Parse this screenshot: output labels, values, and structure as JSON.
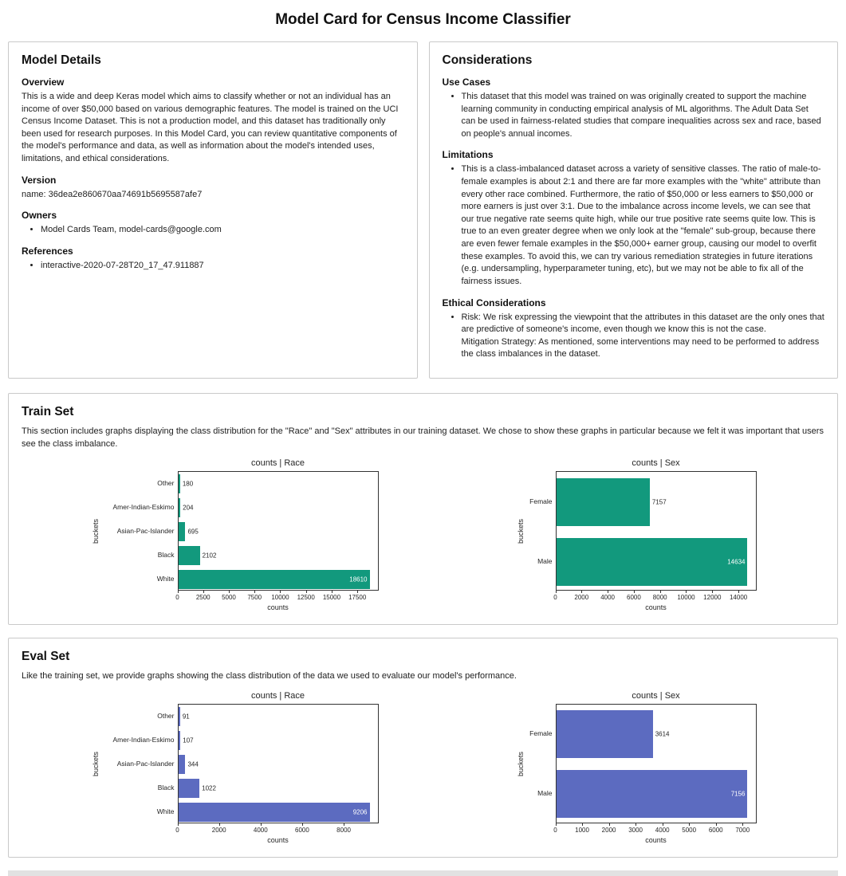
{
  "title": "Model Card for Census Income Classifier",
  "model_details": {
    "heading": "Model Details",
    "overview_heading": "Overview",
    "overview_text": "This is a wide and deep Keras model which aims to classify whether or not an individual has an income of over $50,000 based on various demographic features. The model is trained on the UCI Census Income Dataset. This is not a production model, and this dataset has traditionally only been used for research purposes. In this Model Card, you can review quantitative components of the model's performance and data, as well as information about the model's intended uses, limitations, and ethical considerations.",
    "version_heading": "Version",
    "version_text": "name: 36dea2e860670aa74691b5695587afe7",
    "owners_heading": "Owners",
    "owners_items": [
      "Model Cards Team, model-cards@google.com"
    ],
    "references_heading": "References",
    "references_items": [
      "interactive-2020-07-28T20_17_47.911887"
    ]
  },
  "considerations": {
    "heading": "Considerations",
    "use_cases_heading": "Use Cases",
    "use_cases_items": [
      "This dataset that this model was trained on was originally created to support the machine learning community in conducting empirical analysis of ML algorithms. The Adult Data Set can be used in fairness-related studies that compare inequalities across sex and race, based on people's annual incomes."
    ],
    "limitations_heading": "Limitations",
    "limitations_items": [
      "This is a class-imbalanced dataset across a variety of sensitive classes. The ratio of male-to-female examples is about 2:1 and there are far more examples with the \"white\" attribute than every other race combined. Furthermore, the ratio of $50,000 or less earners to $50,000 or more earners is just over 3:1. Due to the imbalance across income levels, we can see that our true negative rate seems quite high, while our true positive rate seems quite low. This is true to an even greater degree when we only look at the \"female\" sub-group, because there are even fewer female examples in the $50,000+ earner group, causing our model to overfit these examples. To avoid this, we can try various remediation strategies in future iterations (e.g. undersampling, hyperparameter tuning, etc), but we may not be able to fix all of the fairness issues."
    ],
    "ethical_heading": "Ethical Considerations",
    "ethical_items": [
      "Risk: We risk expressing the viewpoint that the attributes in this dataset are the only ones that are predictive of someone's income, even though we know this is not the case.\nMitigation Strategy: As mentioned, some interventions may need to be performed to address the class imbalances in the dataset."
    ]
  },
  "train_set": {
    "heading": "Train Set",
    "description": "This section includes graphs displaying the class distribution for the \"Race\" and \"Sex\" attributes in our training dataset. We chose to show these graphs in particular because we felt it was important that users see the class imbalance."
  },
  "eval_set": {
    "heading": "Eval Set",
    "description": "Like the training set, we provide graphs showing the class distribution of the data we used to evaluate our model's performance."
  },
  "colors": {
    "train_bar": "#12997d",
    "eval_bar": "#5c6bc0"
  },
  "chart_data": [
    {
      "id": "train-race",
      "type": "bar",
      "orientation": "horizontal",
      "title": "counts | Race",
      "xlabel": "counts",
      "ylabel": "buckets",
      "categories": [
        "Other",
        "Amer-Indian-Eskimo",
        "Asian-Pac-Islander",
        "Black",
        "White"
      ],
      "values": [
        180,
        204,
        695,
        2102,
        18610
      ],
      "xticks": [
        0,
        2500,
        5000,
        7500,
        10000,
        12500,
        15000,
        17500
      ],
      "xlim": [
        0,
        19540
      ],
      "grid": false,
      "bar_color": "#12997d"
    },
    {
      "id": "train-sex",
      "type": "bar",
      "orientation": "horizontal",
      "title": "counts | Sex",
      "xlabel": "counts",
      "ylabel": "buckets",
      "categories": [
        "Female",
        "Male"
      ],
      "values": [
        7157,
        14634
      ],
      "xticks": [
        0,
        2000,
        4000,
        6000,
        8000,
        10000,
        12000,
        14000
      ],
      "xlim": [
        0,
        15366
      ],
      "grid": false,
      "bar_color": "#12997d"
    },
    {
      "id": "eval-race",
      "type": "bar",
      "orientation": "horizontal",
      "title": "counts | Race",
      "xlabel": "counts",
      "ylabel": "buckets",
      "categories": [
        "Other",
        "Amer-Indian-Eskimo",
        "Asian-Pac-Islander",
        "Black",
        "White"
      ],
      "values": [
        91,
        107,
        344,
        1022,
        9206
      ],
      "xticks": [
        0,
        2000,
        4000,
        6000,
        8000
      ],
      "xlim": [
        0,
        9666
      ],
      "grid": false,
      "bar_color": "#5c6bc0"
    },
    {
      "id": "eval-sex",
      "type": "bar",
      "orientation": "horizontal",
      "title": "counts | Sex",
      "xlabel": "counts",
      "ylabel": "buckets",
      "categories": [
        "Female",
        "Male"
      ],
      "values": [
        3614,
        7156
      ],
      "xticks": [
        0,
        1000,
        2000,
        3000,
        4000,
        5000,
        6000,
        7000
      ],
      "xlim": [
        0,
        7514
      ],
      "grid": false,
      "bar_color": "#5c6bc0"
    }
  ]
}
